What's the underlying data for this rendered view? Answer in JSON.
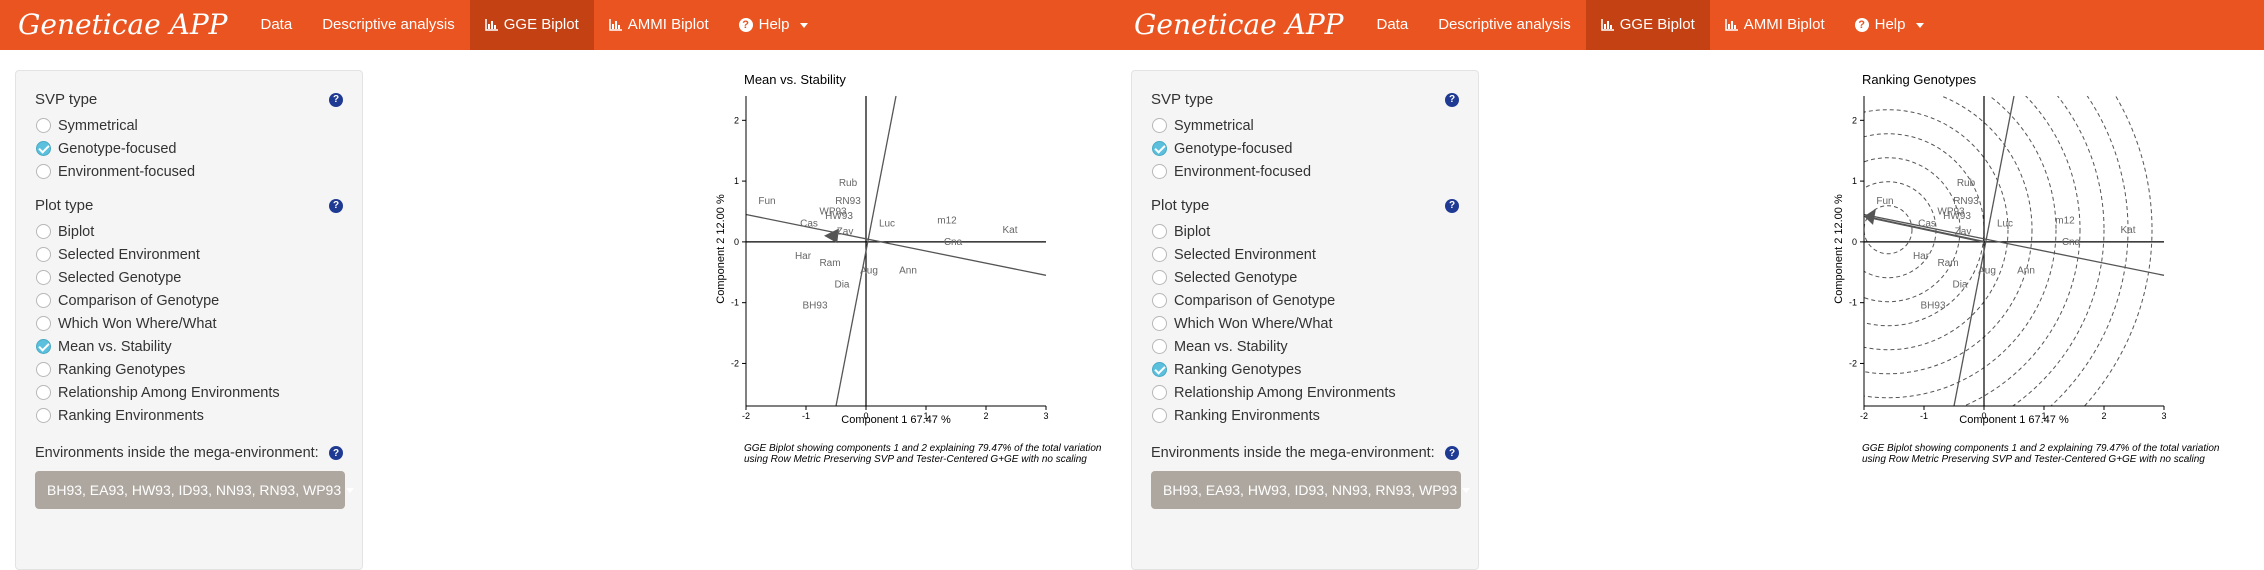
{
  "app": {
    "brand": "Geneticae APP",
    "nav": [
      {
        "label": "Data",
        "icon": ""
      },
      {
        "label": "Descriptive analysis",
        "icon": ""
      },
      {
        "label": "GGE Biplot",
        "icon": "bar-chart-icon"
      },
      {
        "label": "AMMI Biplot",
        "icon": "bar-chart-icon"
      },
      {
        "label": "Help",
        "icon": "question-circle-icon"
      }
    ],
    "active_tab": "GGE Biplot"
  },
  "sidebar": {
    "svp_title": "SVP type",
    "svp_options": [
      "Symmetrical",
      "Genotype-focused",
      "Environment-focused"
    ],
    "svp_selected": "Genotype-focused",
    "plot_title": "Plot type",
    "plot_options": [
      "Biplot",
      "Selected Environment",
      "Selected Genotype",
      "Comparison of Genotype",
      "Which Won Where/What",
      "Mean vs. Stability",
      "Ranking Genotypes",
      "Relationship Among Environments",
      "Ranking Environments"
    ],
    "mega_label": "Environments inside the mega-environment:",
    "mega_value": "BH93, EA93, HW93, ID93, NN93, RN93, WP93"
  },
  "panes": [
    {
      "plot_selected": "Mean vs. Stability",
      "plot": {
        "title": "Mean vs. Stability",
        "xlabel": "Component 1 67.47 %",
        "ylabel": "Component 2 12.00 %",
        "caption_1": "GGE Biplot showing components 1 and 2 explaining 79.47% of the total variation",
        "caption_2": "using Row Metric Preserving SVP and Tester-Centered G+GE with no scaling"
      }
    },
    {
      "plot_selected": "Ranking Genotypes",
      "plot": {
        "title": "Ranking Genotypes",
        "xlabel": "Component 1 67.47 %",
        "ylabel": "Component 2 12.00 %",
        "caption_1": "GGE Biplot showing components 1 and 2 explaining 79.47% of the total variation",
        "caption_2": "using Row Metric Preserving SVP and Tester-Centered G+GE with no scaling"
      }
    }
  ],
  "chart_data": {
    "type": "scatter",
    "xlim": [
      -2,
      3
    ],
    "ylim": [
      -2.7,
      2.4
    ],
    "x_ticks": [
      -2,
      -1,
      0,
      1,
      2,
      3
    ],
    "y_ticks": [
      -2,
      -1,
      0,
      1,
      2
    ],
    "genotypes": [
      {
        "label": "Fun",
        "x": -1.65,
        "y": 0.62
      },
      {
        "label": "Rub",
        "x": -0.3,
        "y": 0.92
      },
      {
        "label": "RN93",
        "x": -0.3,
        "y": 0.62
      },
      {
        "label": "WP93",
        "x": -0.55,
        "y": 0.45
      },
      {
        "label": "HW93",
        "x": -0.45,
        "y": 0.38
      },
      {
        "label": "Cas",
        "x": -0.95,
        "y": 0.25
      },
      {
        "label": "Zav",
        "x": -0.35,
        "y": 0.12
      },
      {
        "label": "Luc",
        "x": 0.35,
        "y": 0.25
      },
      {
        "label": "m12",
        "x": 1.35,
        "y": 0.3
      },
      {
        "label": "Kat",
        "x": 2.4,
        "y": 0.15
      },
      {
        "label": "Cna",
        "x": 1.45,
        "y": -0.05
      },
      {
        "label": "Har",
        "x": -1.05,
        "y": -0.28
      },
      {
        "label": "Ram",
        "x": -0.6,
        "y": -0.4
      },
      {
        "label": "Aug",
        "x": 0.05,
        "y": -0.52
      },
      {
        "label": "Ann",
        "x": 0.7,
        "y": -0.52
      },
      {
        "label": "Dia",
        "x": -0.4,
        "y": -0.75
      },
      {
        "label": "BH93",
        "x": -0.85,
        "y": -1.1
      }
    ]
  }
}
